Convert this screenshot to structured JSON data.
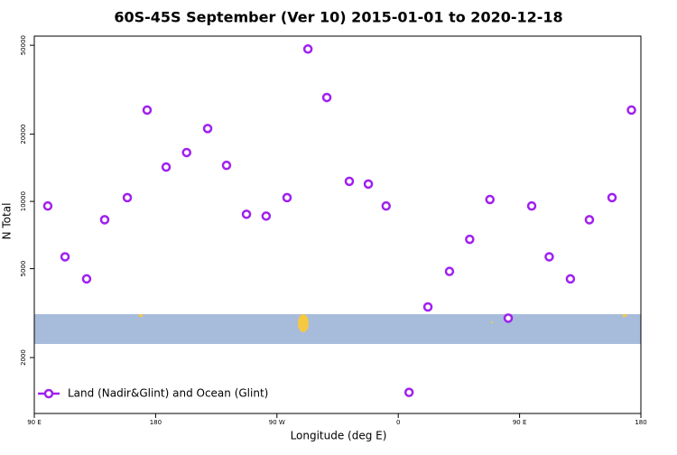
{
  "chart_data": {
    "type": "scatter",
    "title": "60S-45S September (Ver 10)   2015-01-01 to 2020-12-18",
    "x_label": "Longitude (deg E)",
    "y_label": "N Total",
    "series": [
      {
        "name": "Land (Nadir&Glint) and Ocean (Glint)",
        "color": "#a020f0",
        "x": [
          100,
          112.8,
          128.8,
          142.2,
          159,
          173.7,
          187.8,
          203,
          218.6,
          232.6,
          247.4,
          262,
          277.5,
          293,
          307,
          323.7,
          337.8,
          351,
          368,
          382,
          398,
          413,
          428,
          441.6,
          459,
          472,
          487.7,
          501.8,
          518.6,
          533
        ],
        "values": [
          9540,
          5650,
          4500,
          8280,
          10400,
          25640,
          14250,
          16550,
          21200,
          14500,
          8760,
          8600,
          10400,
          48100,
          29200,
          12300,
          11960,
          9540,
          1397,
          3370,
          4860,
          6765,
          10200,
          3003,
          9540,
          5650,
          4500,
          8280,
          10400,
          25640
        ]
      }
    ],
    "xlim": [
      90,
      540
    ],
    "xticks": [
      {
        "value": 90,
        "label": "90 E"
      },
      180,
      {
        "value": 270,
        "label": "90 W"
      },
      {
        "value": 360,
        "label": "0"
      },
      {
        "value": 450,
        "label": "90 E"
      },
      {
        "value": 540,
        "label": "180"
      }
    ],
    "ylim": [
      1124,
      54950
    ],
    "yticks": [
      2000,
      5000,
      10000,
      20000,
      50000
    ],
    "log_y": true,
    "legend": "bottom-left"
  }
}
